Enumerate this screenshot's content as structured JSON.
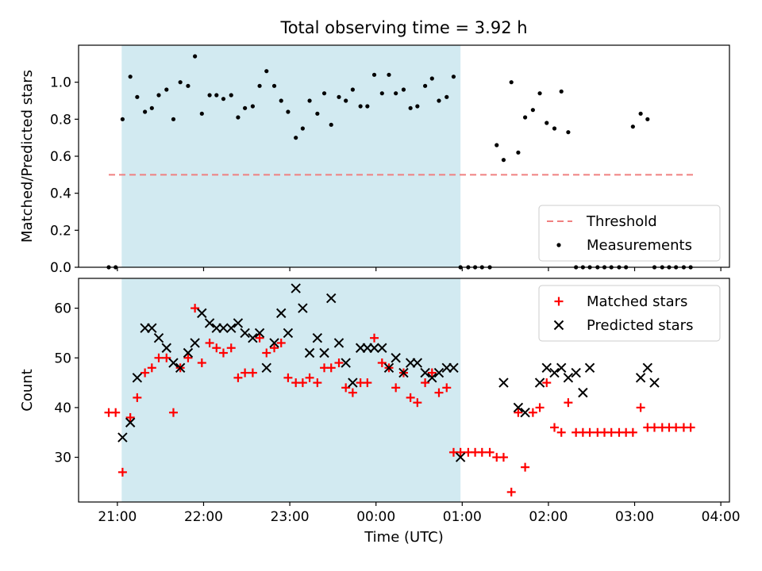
{
  "figure": {
    "title": "Total observing time = 3.92 h"
  },
  "colors": {
    "shade": "#add8e6",
    "threshold": "#f08080",
    "matched": "#ff0000",
    "predicted": "#000000",
    "measurement": "#000000"
  },
  "chart_data": [
    {
      "type": "scatter",
      "title": "Total observing time = 3.92 h",
      "ylabel": "Matched/Predicted stars",
      "xlabel": "",
      "x_unit": "hours since 21:00 UTC",
      "xlim": [
        -0.45,
        7.1
      ],
      "ylim": [
        0,
        1.2
      ],
      "yticks": [
        0.0,
        0.2,
        0.4,
        0.6,
        0.8,
        1.0
      ],
      "ytick_labels": [
        "0.0",
        "0.2",
        "0.4",
        "0.6",
        "0.8",
        "1.0"
      ],
      "legend": {
        "position": "lower-right",
        "entries": [
          "Threshold",
          "Measurements"
        ]
      },
      "shaded_region": {
        "x_start": 0.05,
        "x_end": 3.98
      },
      "threshold": {
        "name": "Threshold",
        "value": 0.5,
        "x_start": -0.1,
        "x_end": 6.7
      },
      "series": [
        {
          "name": "Measurements",
          "x": [
            -0.1,
            -0.02,
            0.06,
            0.15,
            0.23,
            0.32,
            0.4,
            0.48,
            0.57,
            0.65,
            0.73,
            0.82,
            0.9,
            0.98,
            1.07,
            1.15,
            1.23,
            1.32,
            1.4,
            1.48,
            1.57,
            1.65,
            1.73,
            1.82,
            1.9,
            1.98,
            2.07,
            2.15,
            2.23,
            2.32,
            2.4,
            2.48,
            2.57,
            2.65,
            2.73,
            2.82,
            2.9,
            2.98,
            3.07,
            3.15,
            3.23,
            3.32,
            3.4,
            3.48,
            3.57,
            3.65,
            3.73,
            3.82,
            3.9,
            3.98,
            4.07,
            4.15,
            4.23,
            4.32,
            4.4,
            4.48,
            4.57,
            4.65,
            4.73,
            4.82,
            4.9,
            4.98,
            5.07,
            5.15,
            5.23,
            5.32,
            5.4,
            5.48,
            5.57,
            5.65,
            5.73,
            5.82,
            5.9,
            5.98,
            6.07,
            6.15,
            6.23,
            6.32,
            6.4,
            6.48,
            6.57,
            6.65
          ],
          "y": [
            0,
            0,
            0.8,
            1.03,
            0.92,
            0.84,
            0.86,
            0.93,
            0.96,
            0.8,
            1.0,
            0.98,
            1.14,
            0.83,
            0.93,
            0.93,
            0.91,
            0.93,
            0.81,
            0.86,
            0.87,
            0.98,
            1.06,
            0.98,
            0.9,
            0.84,
            0.7,
            0.75,
            0.9,
            0.83,
            0.94,
            0.77,
            0.92,
            0.9,
            0.96,
            0.87,
            0.87,
            1.04,
            0.94,
            1.04,
            0.94,
            0.96,
            0.86,
            0.87,
            0.98,
            1.02,
            0.9,
            0.92,
            1.03,
            0,
            0,
            0,
            0,
            0,
            0.66,
            0.58,
            1.0,
            0.62,
            0.81,
            0.85,
            0.94,
            0.78,
            0.75,
            0.95,
            0.73,
            0,
            0,
            0,
            0,
            0,
            0,
            0,
            0,
            0.76,
            0.83,
            0.8,
            0,
            0,
            0,
            0,
            0,
            0
          ]
        }
      ]
    },
    {
      "type": "scatter",
      "title": "",
      "ylabel": "Count",
      "xlabel": "Time (UTC)",
      "x_unit": "hours since 21:00 UTC",
      "xlim": [
        -0.45,
        7.1
      ],
      "ylim": [
        21,
        66
      ],
      "yticks": [
        30,
        40,
        50,
        60
      ],
      "ytick_labels": [
        "30",
        "40",
        "50",
        "60"
      ],
      "xticks": [
        0,
        1,
        2,
        3,
        4,
        5,
        6,
        7
      ],
      "xtick_labels": [
        "21:00",
        "22:00",
        "23:00",
        "00:00",
        "01:00",
        "02:00",
        "03:00",
        "04:00"
      ],
      "legend": {
        "position": "top-right",
        "entries": [
          "Matched stars",
          "Predicted stars"
        ]
      },
      "shaded_region": {
        "x_start": 0.05,
        "x_end": 3.98
      },
      "series": [
        {
          "name": "Matched stars",
          "marker": "plus",
          "x": [
            -0.1,
            -0.02,
            0.06,
            0.15,
            0.23,
            0.32,
            0.4,
            0.48,
            0.57,
            0.65,
            0.73,
            0.82,
            0.9,
            0.98,
            1.07,
            1.15,
            1.23,
            1.32,
            1.4,
            1.48,
            1.57,
            1.65,
            1.73,
            1.82,
            1.9,
            1.98,
            2.07,
            2.15,
            2.23,
            2.32,
            2.4,
            2.48,
            2.57,
            2.65,
            2.73,
            2.82,
            2.9,
            2.98,
            3.07,
            3.15,
            3.23,
            3.32,
            3.4,
            3.48,
            3.57,
            3.65,
            3.73,
            3.82,
            3.9,
            3.98,
            4.07,
            4.15,
            4.23,
            4.32,
            4.4,
            4.48,
            4.57,
            4.65,
            4.73,
            4.82,
            4.9,
            4.98,
            5.07,
            5.15,
            5.23,
            5.32,
            5.4,
            5.48,
            5.57,
            5.65,
            5.73,
            5.82,
            5.9,
            5.98,
            6.07,
            6.15,
            6.23,
            6.32,
            6.4,
            6.48,
            6.57,
            6.65
          ],
          "y": [
            39,
            39,
            27,
            38,
            42,
            47,
            48,
            50,
            50,
            39,
            48,
            50,
            60,
            49,
            53,
            52,
            51,
            52,
            46,
            47,
            47,
            54,
            51,
            52,
            53,
            46,
            45,
            45,
            46,
            45,
            48,
            48,
            49,
            44,
            43,
            45,
            45,
            54,
            49,
            48,
            44,
            47,
            42,
            41,
            45,
            47,
            43,
            44,
            31,
            31,
            31,
            31,
            31,
            31,
            30,
            30,
            23,
            39,
            28,
            39,
            40,
            45,
            36,
            35,
            41,
            35,
            35,
            35,
            35,
            35,
            35,
            35,
            35,
            35,
            40,
            36,
            36,
            36,
            36,
            36,
            36,
            36
          ]
        },
        {
          "name": "Predicted stars",
          "marker": "x",
          "x": [
            0.06,
            0.15,
            0.23,
            0.32,
            0.4,
            0.48,
            0.57,
            0.65,
            0.73,
            0.82,
            0.9,
            0.98,
            1.07,
            1.15,
            1.23,
            1.32,
            1.4,
            1.48,
            1.57,
            1.65,
            1.73,
            1.82,
            1.9,
            1.98,
            2.07,
            2.15,
            2.23,
            2.32,
            2.4,
            2.48,
            2.57,
            2.65,
            2.73,
            2.82,
            2.9,
            2.98,
            3.07,
            3.15,
            3.23,
            3.32,
            3.4,
            3.48,
            3.57,
            3.65,
            3.73,
            3.82,
            3.9,
            3.98,
            4.48,
            4.65,
            4.73,
            4.9,
            4.98,
            5.07,
            5.15,
            5.23,
            5.32,
            5.4,
            5.48,
            6.07,
            6.15,
            6.23
          ],
          "y": [
            34,
            37,
            46,
            56,
            56,
            54,
            52,
            49,
            48,
            51,
            53,
            59,
            57,
            56,
            56,
            56,
            57,
            55,
            54,
            55,
            48,
            53,
            59,
            55,
            64,
            60,
            51,
            54,
            51,
            62,
            53,
            49,
            45,
            52,
            52,
            52,
            52,
            48,
            50,
            47,
            49,
            49,
            47,
            46,
            47,
            48,
            48,
            30,
            45,
            40,
            39,
            45,
            48,
            47,
            48,
            46,
            47,
            43,
            48,
            46,
            48,
            45
          ]
        }
      ]
    }
  ]
}
